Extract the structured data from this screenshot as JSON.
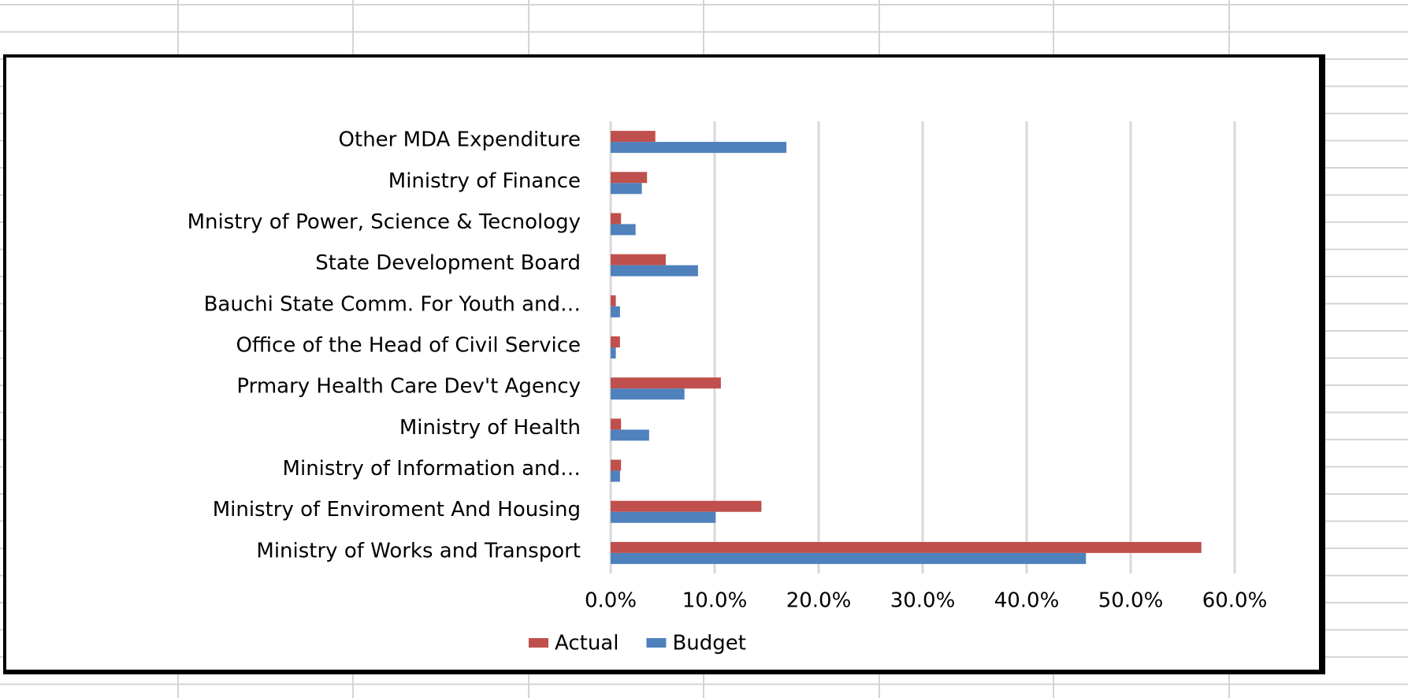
{
  "chart_data": {
    "type": "bar",
    "orientation": "horizontal",
    "categories": [
      "Other MDA Expenditure",
      "Ministry of Finance",
      "Mnistry of Power, Science & Tecnology",
      "State Development Board",
      "Bauchi State Comm. For Youth and…",
      "Office of the Head of Civil Service",
      "Prmary Health Care Dev't Agency",
      "Ministry of Health",
      "Ministry of  Information and…",
      "Ministry of Enviroment And Housing",
      "Ministry of Works and Transport"
    ],
    "series": [
      {
        "name": "Actual",
        "color": "#c0504d",
        "values": [
          4.3,
          3.5,
          1.0,
          5.3,
          0.5,
          0.9,
          10.6,
          1.0,
          1.0,
          14.5,
          56.8
        ]
      },
      {
        "name": "Budget",
        "color": "#4f81bd",
        "values": [
          16.9,
          3.0,
          2.4,
          8.4,
          0.9,
          0.5,
          7.1,
          3.7,
          0.9,
          10.1,
          45.7
        ]
      }
    ],
    "xlim": [
      0,
      60
    ],
    "xticks": [
      {
        "value": 0,
        "label": "0.0%"
      },
      {
        "value": 10,
        "label": "10.0%"
      },
      {
        "value": 20,
        "label": "20.0%"
      },
      {
        "value": 30,
        "label": "30.0%"
      },
      {
        "value": 40,
        "label": "40.0%"
      },
      {
        "value": 50,
        "label": "50.0%"
      },
      {
        "value": 60,
        "label": "60.0%"
      }
    ],
    "grid": true,
    "legend": "bottom"
  }
}
